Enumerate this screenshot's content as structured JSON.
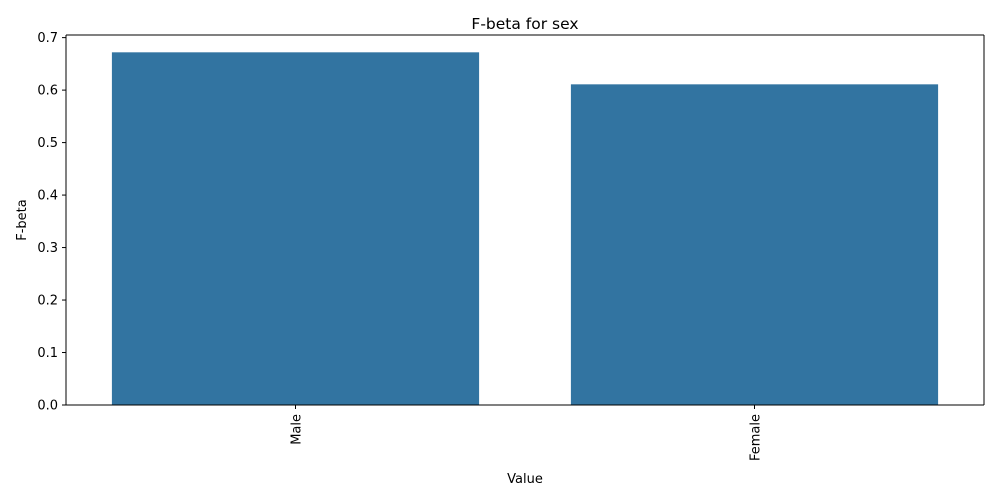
{
  "chart_data": {
    "type": "bar",
    "title": "F-beta for sex",
    "xlabel": "Value",
    "ylabel": "F-beta",
    "categories": [
      "Male",
      "Female"
    ],
    "values": [
      0.672,
      0.611
    ],
    "ylim": [
      0,
      0.705
    ],
    "yticks": [
      0.0,
      0.1,
      0.2,
      0.3,
      0.4,
      0.5,
      0.6,
      0.7
    ],
    "ytick_labels": [
      "0.0",
      "0.1",
      "0.2",
      "0.3",
      "0.4",
      "0.5",
      "0.6",
      "0.7"
    ],
    "bar_color": "#3274a1",
    "grid": false,
    "x_tick_rotation": "vertical"
  }
}
